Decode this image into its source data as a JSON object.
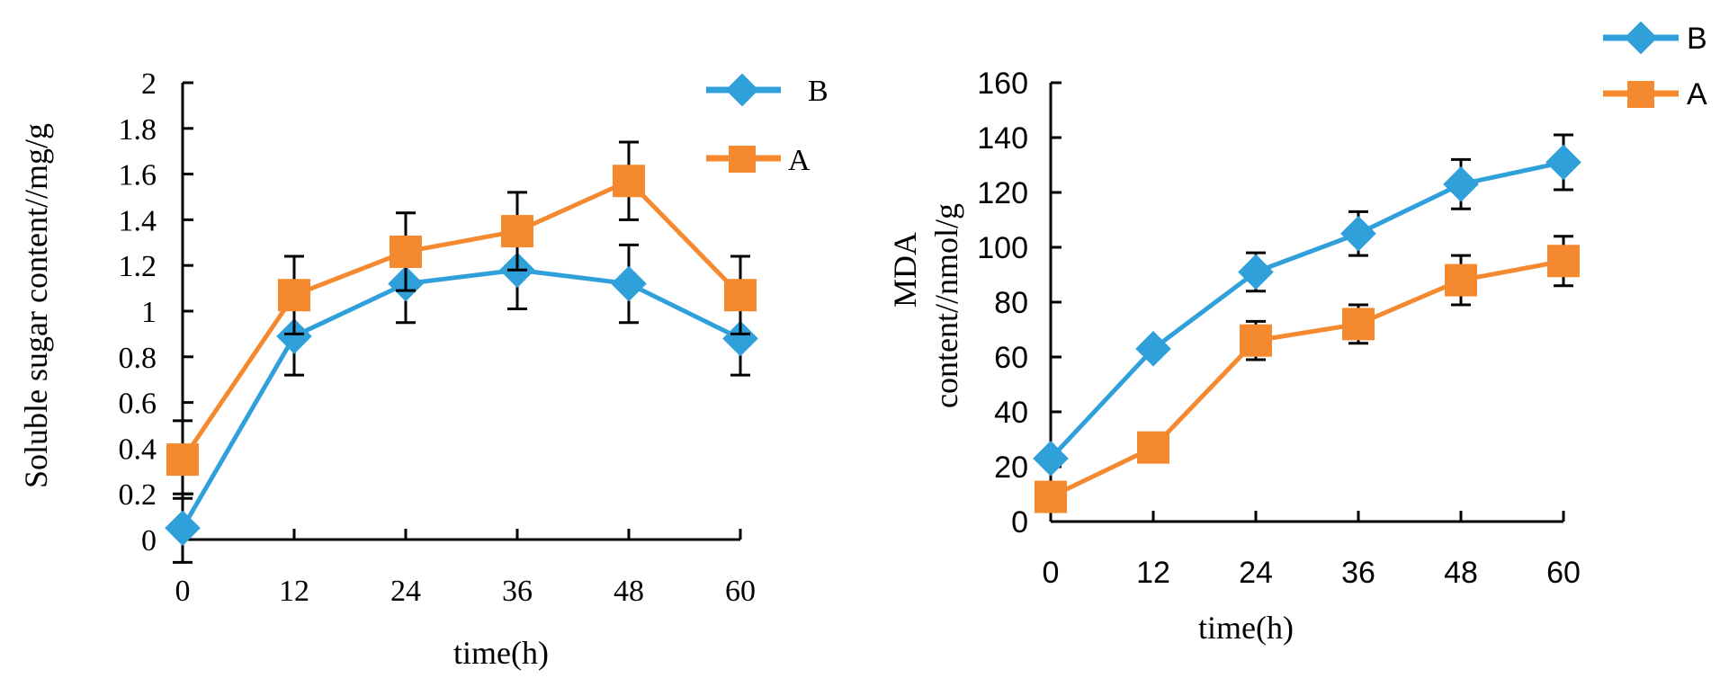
{
  "chart_data": [
    {
      "type": "line",
      "title": "",
      "xlabel": "time(h)",
      "ylabel": "Soluble sugar content//mg/g",
      "x": [
        0,
        12,
        24,
        36,
        48,
        60
      ],
      "x_tick_labels": [
        "0",
        "12",
        "24",
        "36",
        "48",
        "60"
      ],
      "xlim": [
        0,
        60
      ],
      "ylim": [
        0,
        2
      ],
      "y_ticks": [
        0,
        0.2,
        0.4,
        0.6,
        0.8,
        1,
        1.2,
        1.4,
        1.6,
        1.8,
        2
      ],
      "y_tick_labels": [
        "0",
        "0.2",
        "0.4",
        "0.6",
        "0.8",
        "1",
        "1.2",
        "1.4",
        "1.6",
        "1.8",
        "2"
      ],
      "grid": false,
      "legend_position": "top-right",
      "series": [
        {
          "name": "B",
          "color": "#2FA0DA",
          "marker": "diamond",
          "values": [
            0.05,
            0.89,
            1.12,
            1.18,
            1.12,
            0.88
          ],
          "error": [
            0.15,
            0.17,
            0.17,
            0.17,
            0.17,
            0.16
          ]
        },
        {
          "name": "A",
          "color": "#F5892F",
          "marker": "square",
          "values": [
            0.35,
            1.07,
            1.26,
            1.35,
            1.57,
            1.07
          ],
          "error": [
            0.17,
            0.17,
            0.17,
            0.17,
            0.17,
            0.17
          ]
        }
      ]
    },
    {
      "type": "line",
      "title": "",
      "xlabel": "time(h)",
      "ylabel_lines": [
        "MDA",
        "content//nmol/g"
      ],
      "x": [
        0,
        12,
        24,
        36,
        48,
        60
      ],
      "x_tick_labels": [
        "0",
        "12",
        "24",
        "36",
        "48",
        "60"
      ],
      "xlim": [
        0,
        60
      ],
      "ylim": [
        0,
        160
      ],
      "y_ticks": [
        0,
        20,
        40,
        60,
        80,
        100,
        120,
        140,
        160
      ],
      "y_tick_labels": [
        "0",
        "20",
        "40",
        "60",
        "80",
        "100",
        "120",
        "140",
        "160"
      ],
      "grid": false,
      "legend_position": "top-right",
      "series": [
        {
          "name": "B",
          "color": "#2FA0DA",
          "marker": "diamond",
          "values": [
            23,
            63,
            91,
            105,
            123,
            131
          ],
          "error": [
            0,
            0,
            7,
            8,
            9,
            10
          ]
        },
        {
          "name": "A",
          "color": "#F5892F",
          "marker": "square",
          "values": [
            9,
            27,
            66,
            72,
            88,
            95
          ],
          "error": [
            0,
            0,
            7,
            7,
            9,
            9
          ]
        }
      ]
    }
  ]
}
